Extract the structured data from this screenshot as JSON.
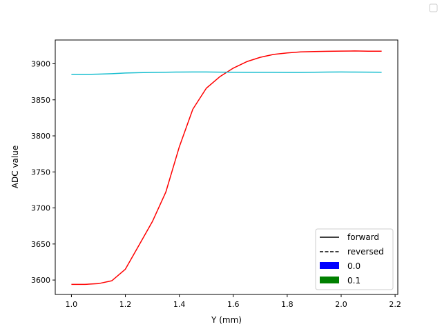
{
  "chart_data": {
    "type": "line",
    "xlabel": "Y (mm)",
    "ylabel": "ADC value",
    "xlim": [
      0.94,
      2.21
    ],
    "ylim": [
      3580,
      3933
    ],
    "x_ticks": [
      "1.0",
      "1.2",
      "1.4",
      "1.6",
      "1.8",
      "2.0",
      "2.2"
    ],
    "y_ticks": [
      "3600",
      "3650",
      "3700",
      "3750",
      "3800",
      "3850",
      "3900"
    ],
    "grid": false,
    "legend_placement": "lower-right",
    "legend": [
      {
        "label": "forward",
        "style": "solid",
        "color": "#000000"
      },
      {
        "label": "reversed",
        "style": "dashed",
        "color": "#000000"
      },
      {
        "label": "0.0",
        "style": "patch",
        "color": "#0000ff"
      },
      {
        "label": "0.1",
        "style": "patch",
        "color": "#008000"
      }
    ],
    "series": [
      {
        "color": "#ff0000",
        "x": [
          1.0,
          1.05,
          1.1,
          1.15,
          1.2,
          1.25,
          1.3,
          1.35,
          1.4,
          1.45,
          1.5,
          1.55,
          1.6,
          1.65,
          1.7,
          1.75,
          1.8,
          1.85,
          1.9,
          1.95,
          2.0,
          2.05,
          2.1,
          2.15
        ],
        "y": [
          3594,
          3594,
          3595,
          3599,
          3615,
          3648,
          3681,
          3722,
          3785,
          3837,
          3866,
          3882,
          3894,
          3903,
          3909,
          3913,
          3915,
          3916.5,
          3917,
          3917.3,
          3917.6,
          3917.8,
          3917.5,
          3917.4
        ]
      },
      {
        "color": "#17becf",
        "x": [
          1.0,
          1.05,
          1.1,
          1.15,
          1.2,
          1.25,
          1.3,
          1.35,
          1.4,
          1.45,
          1.5,
          1.55,
          1.6,
          1.65,
          1.7,
          1.75,
          1.8,
          1.85,
          1.9,
          1.95,
          2.0,
          2.05,
          2.1,
          2.15
        ],
        "y": [
          3885.5,
          3885.3,
          3885.6,
          3886.2,
          3887.2,
          3887.7,
          3888,
          3888.3,
          3888.5,
          3888.6,
          3888.6,
          3888.4,
          3888.2,
          3888.1,
          3888.1,
          3888.1,
          3888,
          3888,
          3888.3,
          3888.5,
          3888.6,
          3888.5,
          3888.4,
          3888.2
        ]
      }
    ]
  }
}
